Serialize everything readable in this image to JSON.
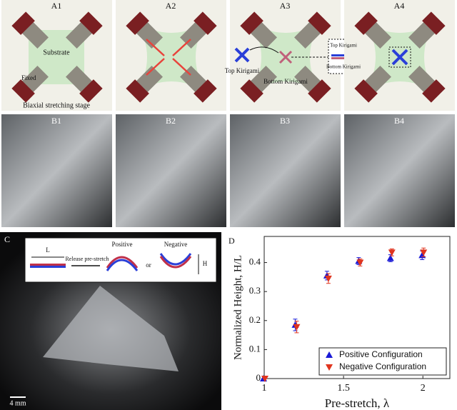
{
  "panels": {
    "a": [
      {
        "label": "A1",
        "texts": [
          "Substrate",
          "Fixed",
          "Biaxial stretching stage"
        ]
      },
      {
        "label": "A2"
      },
      {
        "label": "A3",
        "texts": [
          "Top Kirigami",
          "Bottom Kirigami",
          "Top Kirigami",
          "Bottom Kirigami"
        ]
      },
      {
        "label": "A4"
      }
    ],
    "b": [
      "B1",
      "B2",
      "B3",
      "B4"
    ],
    "c": {
      "label": "C",
      "inset": [
        "L",
        "Release pre-stretch",
        "Positive",
        "or",
        "Negative",
        "H"
      ],
      "scale_bar": "4 mm"
    },
    "d": "D"
  },
  "chart_data": {
    "type": "scatter",
    "xlabel": "Pre-stretch, λ",
    "ylabel": "Normalized Height, H/L",
    "xlim": [
      1,
      2.17
    ],
    "ylim": [
      0,
      0.49
    ],
    "xticks": [
      1,
      1.5,
      2
    ],
    "yticks": [
      0,
      0.1,
      0.2,
      0.3,
      0.4
    ],
    "legend": "lower-right",
    "x": [
      1,
      1.2,
      1.4,
      1.6,
      1.8,
      2
    ],
    "series": [
      {
        "name": "Positive Configuration",
        "color": "#1a1ad6",
        "marker": "triangle-up",
        "values": [
          0,
          0.185,
          0.355,
          0.405,
          0.415,
          0.425
        ],
        "errors": [
          0,
          0.02,
          0.015,
          0.012,
          0.012,
          0.015
        ]
      },
      {
        "name": "Negative Configuration",
        "color": "#e0341e",
        "marker": "triangle-down",
        "values": [
          0,
          0.178,
          0.345,
          0.4,
          0.435,
          0.435
        ],
        "errors": [
          0,
          0.02,
          0.017,
          0.012,
          0.012,
          0.015
        ]
      }
    ]
  }
}
